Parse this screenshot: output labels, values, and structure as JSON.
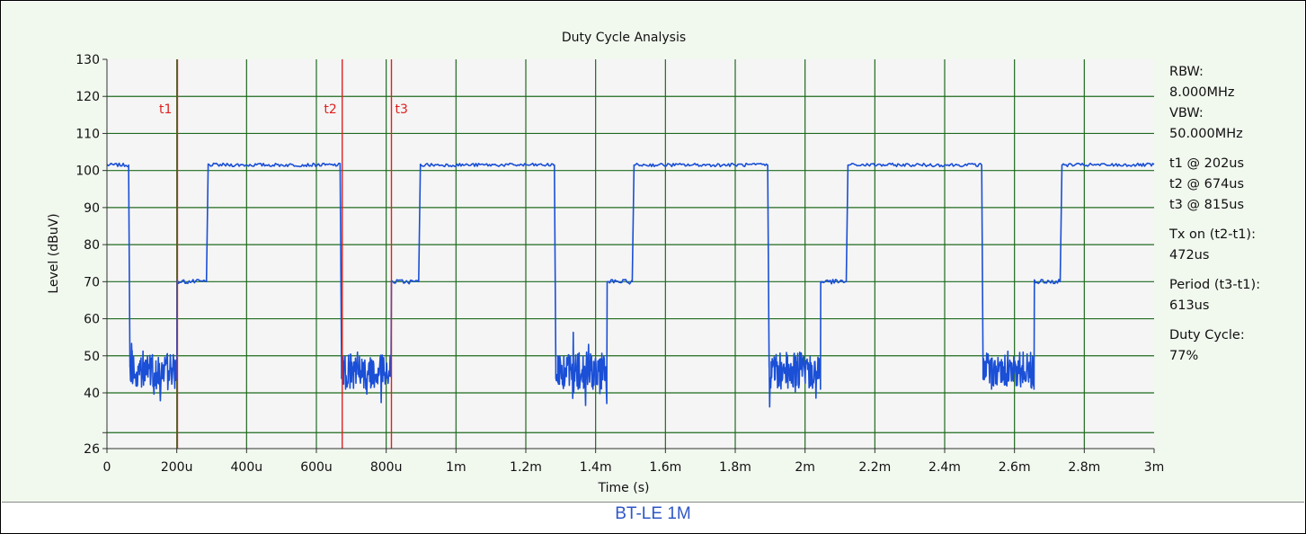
{
  "caption": "BT-LE 1M",
  "info_panel": {
    "lines": [
      "RBW:",
      "8.000MHz",
      "VBW:",
      "50.000MHz",
      "",
      "t1 @ 202us",
      "t2 @ 674us",
      "t3 @ 815us",
      "",
      "Tx on (t2-t1):",
      "472us",
      "",
      "Period (t3-t1):",
      "613us",
      "",
      "Duty Cycle:",
      "77%"
    ]
  },
  "colors": {
    "plot_bg": "#f5f5f5",
    "panel_bg": "#f1f8ee",
    "grid": "#1e6b1e",
    "trace": "#1a4fd6",
    "cursor": "#e02020",
    "caption": "#2f57c7"
  },
  "chart_data": {
    "type": "line",
    "title": "Duty Cycle Analysis",
    "xlabel": "Time (s)",
    "ylabel": "Level (dBuV)",
    "xlim": [
      0,
      0.003
    ],
    "ylim": [
      26,
      130
    ],
    "x_ticks": [
      0,
      0.0002,
      0.0004,
      0.0006,
      0.0008,
      0.001,
      0.0012,
      0.0014,
      0.0016,
      0.0018,
      0.002,
      0.0022,
      0.0024,
      0.0026,
      0.0028,
      0.003
    ],
    "x_tick_labels": [
      "0",
      "200u",
      "400u",
      "600u",
      "800u",
      "1m",
      "1.2m",
      "1.4m",
      "1.6m",
      "1.8m",
      "2m",
      "2.2m",
      "2.4m",
      "2.6m",
      "2.8m",
      "3m"
    ],
    "y_ticks": [
      26,
      40,
      50,
      60,
      70,
      80,
      90,
      100,
      110,
      120,
      130
    ],
    "y_tick_labels": [
      "26",
      "40",
      "50",
      "60",
      "70",
      "80",
      "90",
      "100",
      "110",
      "120",
      "130"
    ],
    "extra_gridlines_y": [
      30
    ],
    "grid": true,
    "cursors": [
      {
        "label": "t1",
        "x": 0.000202
      },
      {
        "label": "t2",
        "x": 0.000674
      },
      {
        "label": "t3",
        "x": 0.000815
      }
    ],
    "series": [
      {
        "points": [
          [
            0,
            101.5
          ],
          [
            6.2e-05,
            101.5
          ],
          [
            6.6e-05,
            47
          ],
          [
            7.2e-05,
            40
          ],
          [
            0.0002,
            44
          ],
          [
            0.000201,
            70
          ],
          [
            0.000285,
            70
          ],
          [
            0.00029,
            101.5
          ],
          [
            0.000668,
            101.5
          ],
          [
            0.000672,
            47
          ],
          [
            0.000678,
            38
          ],
          [
            0.000814,
            50
          ],
          [
            0.000815,
            70
          ],
          [
            0.000893,
            70
          ],
          [
            0.000898,
            101.5
          ],
          [
            0.001282,
            101.5
          ],
          [
            0.001286,
            47
          ],
          [
            0.001292,
            39
          ],
          [
            0.001432,
            42
          ],
          [
            0.001433,
            70
          ],
          [
            0.001505,
            70
          ],
          [
            0.00151,
            101.5
          ],
          [
            0.001893,
            101.5
          ],
          [
            0.001897,
            47
          ],
          [
            0.001903,
            41
          ],
          [
            0.002044,
            41
          ],
          [
            0.002045,
            70
          ],
          [
            0.002118,
            70
          ],
          [
            0.002123,
            101.5
          ],
          [
            0.002506,
            101.5
          ],
          [
            0.00251,
            47
          ],
          [
            0.002516,
            38
          ],
          [
            0.002656,
            41
          ],
          [
            0.002657,
            70
          ],
          [
            0.002731,
            70
          ],
          [
            0.002736,
            101.5
          ],
          [
            0.003,
            101.5
          ]
        ]
      }
    ]
  }
}
